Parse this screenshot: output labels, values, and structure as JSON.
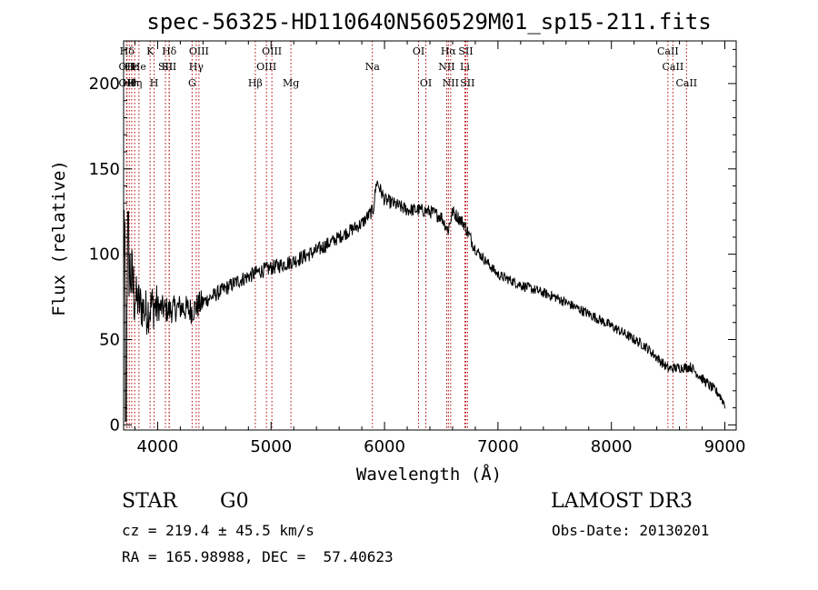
{
  "title": "spec-56325-HD110640N560529M01_sp15-211.fits",
  "chart_data": {
    "type": "line",
    "title": "spec-56325-HD110640N560529M01_sp15-211.fits",
    "xlabel": "Wavelength (Å)",
    "ylabel": "Flux (relative)",
    "xlim": [
      3700,
      9100
    ],
    "ylim": [
      -3,
      225
    ],
    "xticks": [
      4000,
      5000,
      6000,
      7000,
      8000,
      9000
    ],
    "yticks": [
      0,
      50,
      100,
      150,
      200
    ],
    "spectrum_anchors": [
      [
        3700,
        80
      ],
      [
        3740,
        95
      ],
      [
        3800,
        75
      ],
      [
        3850,
        70
      ],
      [
        3900,
        66
      ],
      [
        3950,
        70
      ],
      [
        4000,
        69
      ],
      [
        4100,
        67
      ],
      [
        4200,
        69
      ],
      [
        4300,
        67
      ],
      [
        4400,
        72
      ],
      [
        4500,
        76
      ],
      [
        4600,
        80
      ],
      [
        4700,
        84
      ],
      [
        4800,
        87
      ],
      [
        4900,
        90
      ],
      [
        5000,
        92
      ],
      [
        5200,
        96
      ],
      [
        5400,
        102
      ],
      [
        5600,
        110
      ],
      [
        5800,
        118
      ],
      [
        5900,
        126
      ],
      [
        5930,
        143
      ],
      [
        6000,
        132
      ],
      [
        6200,
        126
      ],
      [
        6300,
        126
      ],
      [
        6400,
        125
      ],
      [
        6500,
        122
      ],
      [
        6560,
        114
      ],
      [
        6600,
        125
      ],
      [
        6700,
        118
      ],
      [
        6800,
        103
      ],
      [
        7000,
        88
      ],
      [
        7200,
        82
      ],
      [
        7500,
        75
      ],
      [
        7800,
        65
      ],
      [
        8000,
        58
      ],
      [
        8300,
        46
      ],
      [
        8500,
        33
      ],
      [
        8700,
        34
      ],
      [
        8800,
        27
      ],
      [
        8950,
        18
      ],
      [
        9000,
        12
      ]
    ],
    "lines": [
      {
        "label": "Hδ",
        "wavelength": 3730,
        "row": 0
      },
      {
        "label": "OII",
        "wavelength": 3727,
        "row": 1
      },
      {
        "label": "OII",
        "wavelength": 3727,
        "row": 2
      },
      {
        "label": "Hθ",
        "wavelength": 3750,
        "row": 2
      },
      {
        "label": "Hε",
        "wavelength": 3771,
        "row": 1
      },
      {
        "label": "Hη",
        "wavelength": 3798,
        "row": 2
      },
      {
        "label": "He",
        "wavelength": 3835,
        "row": 1
      },
      {
        "label": "K",
        "wavelength": 3934,
        "row": 0
      },
      {
        "label": "H",
        "wavelength": 3969,
        "row": 2
      },
      {
        "label": "SII",
        "wavelength": 4069,
        "row": 1
      },
      {
        "label": "Hδ",
        "wavelength": 4102,
        "row": 0
      },
      {
        "label": "SII",
        "wavelength": 4102,
        "row": 1
      },
      {
        "label": "G",
        "wavelength": 4304,
        "row": 2
      },
      {
        "label": "OIII",
        "wavelength": 4364,
        "row": 0
      },
      {
        "label": "Hγ",
        "wavelength": 4340,
        "row": 1
      },
      {
        "label": "Hβ",
        "wavelength": 4861,
        "row": 2
      },
      {
        "label": "OIII",
        "wavelength": 4959,
        "row": 1
      },
      {
        "label": "OIII",
        "wavelength": 5007,
        "row": 0
      },
      {
        "label": "Mg",
        "wavelength": 5175,
        "row": 2
      },
      {
        "label": "Na",
        "wavelength": 5893,
        "row": 1
      },
      {
        "label": "OI",
        "wavelength": 6300,
        "row": 0
      },
      {
        "label": "OI",
        "wavelength": 6364,
        "row": 2
      },
      {
        "label": "Hα",
        "wavelength": 6563,
        "row": 0
      },
      {
        "label": "NII",
        "wavelength": 6548,
        "row": 1
      },
      {
        "label": "NII",
        "wavelength": 6583,
        "row": 2
      },
      {
        "label": "SII",
        "wavelength": 6716,
        "row": 0
      },
      {
        "label": "Li",
        "wavelength": 6708,
        "row": 1
      },
      {
        "label": "SII",
        "wavelength": 6731,
        "row": 2
      },
      {
        "label": "CaII",
        "wavelength": 8498,
        "row": 0
      },
      {
        "label": "CaII",
        "wavelength": 8542,
        "row": 1
      },
      {
        "label": "CaII",
        "wavelength": 8662,
        "row": 2
      }
    ],
    "line_color": "#b30000",
    "spectrum_color": "#000000"
  },
  "info": {
    "object_type": "STAR",
    "subclass": "G0",
    "survey": "LAMOST DR3",
    "redshift": "cz = 219.4 ± 45.5 km/s",
    "obs_date": "Obs-Date: 20130201",
    "coords": "RA = 165.98988, DEC =  57.40623"
  }
}
